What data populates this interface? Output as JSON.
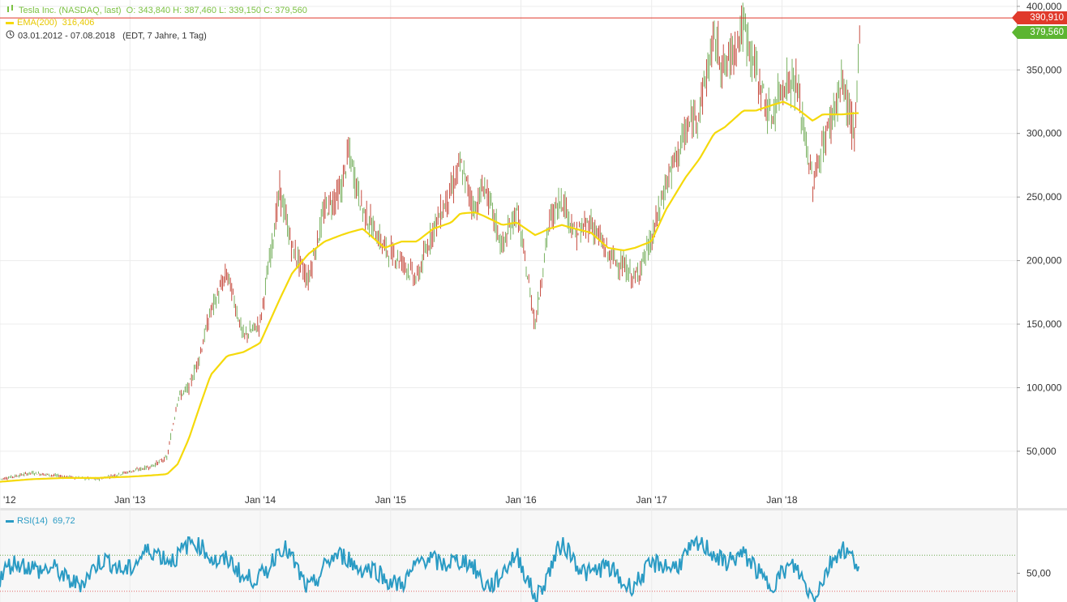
{
  "header": {
    "title": "Tesla Inc. (NASDAQ, last)",
    "ohlc": "O: 343,840  H: 387,460  L: 339,150  C: 379,560",
    "ema_label": "EMA(200)",
    "ema_value": "316,406",
    "date_range": "03.01.2012 - 07.08.2018",
    "timeframe": "(EDT, 7 Jahre, 1 Tag)"
  },
  "price_tags": {
    "high": "390,910",
    "close": "379,560"
  },
  "rsi": {
    "label": "RSI(14)",
    "value": "69,72"
  },
  "colors": {
    "up": "#6aa84f",
    "down": "#c0392b",
    "ema": "#f5d90a",
    "rsi": "#2a9bc4",
    "high_tag": "#e0392b",
    "close_tag": "#5cb531",
    "title": "#7cc243"
  },
  "chart_data": [
    {
      "type": "line",
      "title": "Tesla Inc. (NASDAQ, last)",
      "x": [
        "2012-01-03",
        "2012-04-01",
        "2012-07-01",
        "2012-10-01",
        "2013-01-01",
        "2013-03-01",
        "2013-04-15",
        "2013-05-15",
        "2013-06-15",
        "2013-07-15",
        "2013-08-15",
        "2013-09-30",
        "2013-11-15",
        "2013-12-31",
        "2014-02-25",
        "2014-03-31",
        "2014-05-15",
        "2014-06-30",
        "2014-08-15",
        "2014-09-05",
        "2014-10-15",
        "2014-12-15",
        "2015-02-01",
        "2015-03-15",
        "2015-04-30",
        "2015-06-20",
        "2015-07-15",
        "2015-08-25",
        "2015-09-20",
        "2015-11-10",
        "2015-12-20",
        "2016-02-10",
        "2016-03-20",
        "2016-04-25",
        "2016-06-01",
        "2016-07-15",
        "2016-09-01",
        "2016-10-15",
        "2016-11-15",
        "2016-12-31",
        "2017-02-10",
        "2017-04-05",
        "2017-05-15",
        "2017-06-25",
        "2017-07-25",
        "2017-09-15",
        "2017-10-20",
        "2017-12-01",
        "2018-01-05",
        "2018-02-10",
        "2018-03-28",
        "2018-04-25",
        "2018-06-20",
        "2018-07-25",
        "2018-08-07"
      ],
      "series": [
        {
          "values": [
            28,
            33,
            30,
            28,
            34,
            38,
            45,
            92,
            100,
            125,
            160,
            190,
            140,
            150,
            255,
            210,
            185,
            240,
            255,
            285,
            240,
            210,
            200,
            185,
            225,
            255,
            275,
            240,
            260,
            210,
            240,
            150,
            230,
            250,
            220,
            230,
            205,
            195,
            185,
            215,
            260,
            300,
            320,
            375,
            350,
            385,
            350,
            310,
            340,
            340,
            260,
            290,
            340,
            295,
            380
          ]
        },
        {
          "name": "EMA(200)",
          "values": [
            26,
            28,
            29,
            29,
            30,
            31,
            32,
            40,
            60,
            85,
            110,
            125,
            128,
            135,
            170,
            190,
            205,
            215,
            220,
            222,
            225,
            210,
            215,
            215,
            225,
            230,
            237,
            238,
            235,
            228,
            230,
            220,
            225,
            228,
            225,
            222,
            210,
            208,
            210,
            215,
            240,
            265,
            280,
            300,
            305,
            318,
            318,
            322,
            325,
            320,
            310,
            315,
            315,
            316,
            316
          ]
        }
      ],
      "ylim": [
        20000,
        405000
      ],
      "yticks": [
        "400,000",
        "350,000",
        "300,000",
        "250,000",
        "200,000",
        "150,000",
        "100,000",
        "50,000"
      ],
      "xticks": [
        "'12",
        "Jan '13",
        "Jan '14",
        "Jan '15",
        "Jan '16",
        "Jan '17",
        "Jan '18"
      ],
      "high_line": 390910
    },
    {
      "type": "line",
      "title": "RSI(14)",
      "x": [
        "2012-01-03",
        "2012-04-01",
        "2012-07-01",
        "2012-10-01",
        "2013-01-01",
        "2013-04-15",
        "2013-06-15",
        "2013-09-30",
        "2013-11-15",
        "2014-02-25",
        "2014-05-15",
        "2014-09-05",
        "2014-12-15",
        "2015-03-15",
        "2015-06-20",
        "2015-09-20",
        "2015-12-20",
        "2016-02-10",
        "2016-04-25",
        "2016-07-15",
        "2016-10-15",
        "2016-12-31",
        "2017-04-05",
        "2017-06-25",
        "2017-09-15",
        "2017-12-01",
        "2018-02-10",
        "2018-03-28",
        "2018-06-20",
        "2018-08-07"
      ],
      "series": [
        {
          "name": "RSI(14)",
          "values": [
            45,
            65,
            40,
            55,
            62,
            72,
            78,
            68,
            35,
            75,
            40,
            72,
            38,
            55,
            70,
            40,
            62,
            30,
            75,
            55,
            42,
            50,
            72,
            75,
            62,
            45,
            50,
            32,
            72,
            70
          ]
        }
      ],
      "ylim": [
        0,
        100
      ],
      "yticks": [
        "50,00"
      ],
      "upper_band": 70,
      "lower_band": 30
    }
  ]
}
